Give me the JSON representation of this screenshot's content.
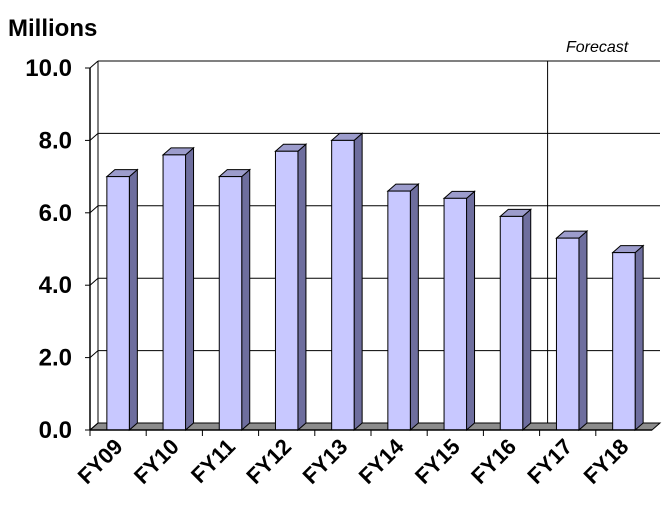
{
  "chart_data": {
    "type": "bar",
    "title": "",
    "ylabel": "Millions",
    "xlabel": "",
    "categories": [
      "FY09",
      "FY10",
      "FY11",
      "FY12",
      "FY13",
      "FY14",
      "FY15",
      "FY16",
      "FY17",
      "FY18"
    ],
    "values": [
      7.0,
      7.6,
      7.0,
      7.7,
      8.0,
      6.6,
      6.4,
      5.9,
      5.3,
      4.9
    ],
    "ylim": [
      0,
      10
    ],
    "yticks": [
      "0.0",
      "2.0",
      "4.0",
      "6.0",
      "8.0",
      "10.0"
    ],
    "grid": true,
    "annotation": "Forecast",
    "forecast_from_category": "FY17",
    "colors": {
      "bar_front": "#c8c8ff",
      "bar_side": "#6e6e9e",
      "bar_top": "#9c9ccc",
      "floor": "#8c8c8c",
      "grid": "#000000"
    }
  }
}
